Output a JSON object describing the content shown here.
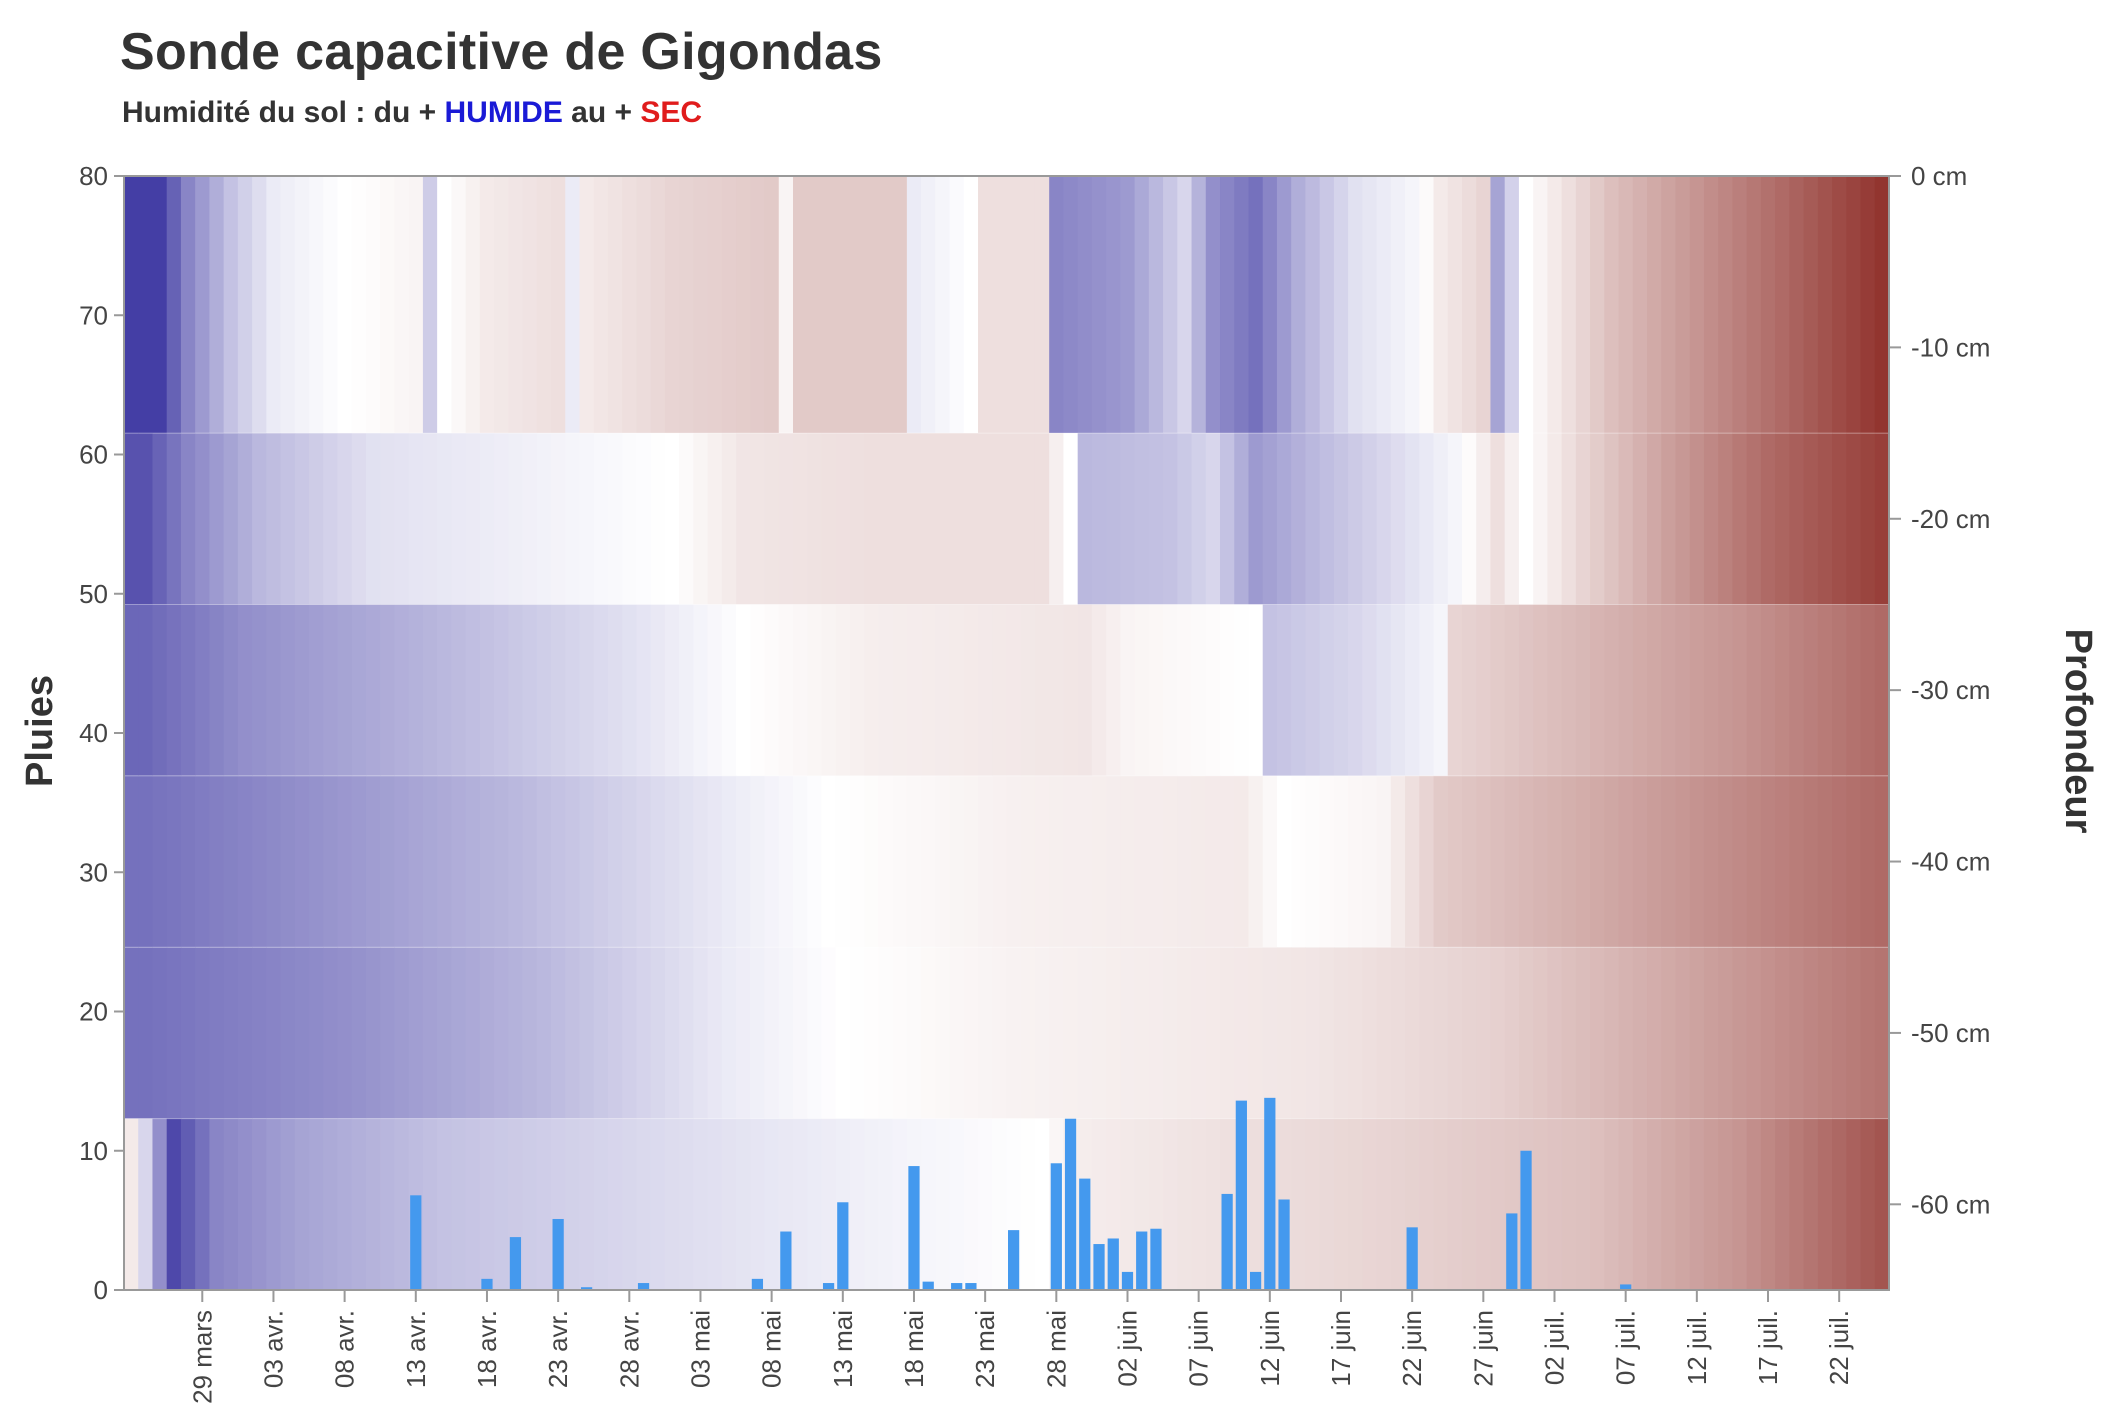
{
  "header": {
    "title": "Sonde capacitive de Gigondas",
    "subtitle_prefix": "Humidité du sol : du + ",
    "subtitle_wet": "HUMIDE",
    "subtitle_mid": " au + ",
    "subtitle_dry": "SEC"
  },
  "colors": {
    "wet": "#3a34a0",
    "neutral": "#ffffff",
    "dry": "#8c2a24",
    "rain": "#4499ee",
    "axis": "#999999"
  },
  "chart_data": {
    "type": "heatmap",
    "title": "Sonde capacitive de Gigondas",
    "ylabel_left": "Pluies",
    "ylabel_right": "Profondeur",
    "ylim_left": [
      0,
      80
    ],
    "yticks_left": [
      "0",
      "10",
      "20",
      "30",
      "40",
      "50",
      "60",
      "70",
      "80"
    ],
    "depth_ticks": [
      "0 cm",
      "-10 cm",
      "-20 cm",
      "-30 cm",
      "-40 cm",
      "-50 cm",
      "-60 cm"
    ],
    "x_start": "2024-03-24",
    "x_end": "2024-07-25",
    "xticks": [
      "29 mars",
      "03 avr.",
      "08 avr.",
      "13 avr.",
      "18 avr.",
      "23 avr.",
      "28 avr.",
      "03 mai",
      "08 mai",
      "13 mai",
      "18 mai",
      "23 mai",
      "28 mai",
      "02 juin",
      "07 juin",
      "12 juin",
      "17 juin",
      "22 juin",
      "27 juin",
      "02 juil.",
      "07 juil.",
      "12 juil.",
      "17 juil.",
      "22 juil."
    ],
    "layer_bounds_cm": [
      0,
      -15,
      -25,
      -35,
      -45,
      -55,
      -65
    ],
    "moisture_scale": "-1 = plus humide (bleu), 0 = neutre (blanc), +1 = plus sec (rouge)",
    "moisture_layers": [
      {
        "depth": "0 to -15 cm",
        "points": [
          [
            "2024-03-26",
            -0.95
          ],
          [
            "2024-03-28",
            -0.6
          ],
          [
            "2024-03-31",
            -0.3
          ],
          [
            "2024-04-03",
            -0.1
          ],
          [
            "2024-04-08",
            0.0
          ],
          [
            "2024-04-13",
            0.05
          ],
          [
            "2024-04-14",
            -0.25
          ],
          [
            "2024-04-15",
            0.0
          ],
          [
            "2024-04-18",
            0.1
          ],
          [
            "2024-04-23",
            0.15
          ],
          [
            "2024-04-24",
            -0.1
          ],
          [
            "2024-04-25",
            0.1
          ],
          [
            "2024-05-01",
            0.2
          ],
          [
            "2024-05-08",
            0.25
          ],
          [
            "2024-05-09",
            0.05
          ],
          [
            "2024-05-10",
            0.25
          ],
          [
            "2024-05-17",
            0.25
          ],
          [
            "2024-05-18",
            -0.1
          ],
          [
            "2024-05-22",
            0.0
          ],
          [
            "2024-05-23",
            0.15
          ],
          [
            "2024-05-27",
            0.15
          ],
          [
            "2024-05-28",
            -0.6
          ],
          [
            "2024-06-02",
            -0.5
          ],
          [
            "2024-06-06",
            -0.2
          ],
          [
            "2024-06-08",
            -0.55
          ],
          [
            "2024-06-11",
            -0.7
          ],
          [
            "2024-06-14",
            -0.4
          ],
          [
            "2024-06-18",
            -0.15
          ],
          [
            "2024-06-22",
            -0.05
          ],
          [
            "2024-06-24",
            0.1
          ],
          [
            "2024-06-27",
            0.2
          ],
          [
            "2024-06-28",
            -0.45
          ],
          [
            "2024-06-30",
            0.0
          ],
          [
            "2024-07-02",
            0.1
          ],
          [
            "2024-07-06",
            0.3
          ],
          [
            "2024-07-12",
            0.5
          ],
          [
            "2024-07-18",
            0.7
          ],
          [
            "2024-07-25",
            0.95
          ]
        ]
      },
      {
        "depth": "-15 to -25 cm",
        "points": [
          [
            "2024-03-25",
            -0.85
          ],
          [
            "2024-03-28",
            -0.6
          ],
          [
            "2024-04-02",
            -0.35
          ],
          [
            "2024-04-10",
            -0.15
          ],
          [
            "2024-04-20",
            -0.08
          ],
          [
            "2024-05-01",
            0.0
          ],
          [
            "2024-05-06",
            0.12
          ],
          [
            "2024-05-15",
            0.15
          ],
          [
            "2024-05-27",
            0.15
          ],
          [
            "2024-05-29",
            0.0
          ],
          [
            "2024-05-30",
            -0.35
          ],
          [
            "2024-06-05",
            -0.3
          ],
          [
            "2024-06-08",
            -0.2
          ],
          [
            "2024-06-11",
            -0.5
          ],
          [
            "2024-06-15",
            -0.35
          ],
          [
            "2024-06-20",
            -0.2
          ],
          [
            "2024-06-25",
            -0.05
          ],
          [
            "2024-06-28",
            0.15
          ],
          [
            "2024-06-30",
            0.0
          ],
          [
            "2024-07-04",
            0.2
          ],
          [
            "2024-07-10",
            0.45
          ],
          [
            "2024-07-17",
            0.7
          ],
          [
            "2024-07-25",
            0.9
          ]
        ]
      },
      {
        "depth": "-25 to -35 cm",
        "points": [
          [
            "2024-03-25",
            -0.75
          ],
          [
            "2024-04-01",
            -0.55
          ],
          [
            "2024-04-15",
            -0.35
          ],
          [
            "2024-04-28",
            -0.15
          ],
          [
            "2024-05-06",
            0.0
          ],
          [
            "2024-05-15",
            0.08
          ],
          [
            "2024-05-30",
            0.12
          ],
          [
            "2024-06-02",
            0.05
          ],
          [
            "2024-06-11",
            0.0
          ],
          [
            "2024-06-12",
            -0.3
          ],
          [
            "2024-06-18",
            -0.2
          ],
          [
            "2024-06-24",
            -0.05
          ],
          [
            "2024-06-25",
            0.2
          ],
          [
            "2024-07-05",
            0.35
          ],
          [
            "2024-07-15",
            0.5
          ],
          [
            "2024-07-25",
            0.7
          ]
        ]
      },
      {
        "depth": "-35 to -45 cm",
        "points": [
          [
            "2024-03-25",
            -0.7
          ],
          [
            "2024-04-05",
            -0.55
          ],
          [
            "2024-04-20",
            -0.35
          ],
          [
            "2024-05-05",
            -0.1
          ],
          [
            "2024-05-12",
            0.0
          ],
          [
            "2024-05-25",
            0.07
          ],
          [
            "2024-06-10",
            0.1
          ],
          [
            "2024-06-13",
            0.0
          ],
          [
            "2024-06-20",
            0.05
          ],
          [
            "2024-06-24",
            0.25
          ],
          [
            "2024-07-05",
            0.4
          ],
          [
            "2024-07-15",
            0.55
          ],
          [
            "2024-07-25",
            0.7
          ]
        ]
      },
      {
        "depth": "-45 to -55 cm",
        "points": [
          [
            "2024-03-25",
            -0.7
          ],
          [
            "2024-04-08",
            -0.55
          ],
          [
            "2024-04-22",
            -0.35
          ],
          [
            "2024-05-05",
            -0.1
          ],
          [
            "2024-05-13",
            0.0
          ],
          [
            "2024-05-25",
            0.06
          ],
          [
            "2024-06-15",
            0.12
          ],
          [
            "2024-06-28",
            0.22
          ],
          [
            "2024-07-10",
            0.4
          ],
          [
            "2024-07-25",
            0.65
          ]
        ]
      },
      {
        "depth": "-55 to -65 cm",
        "points": [
          [
            "2024-03-24",
            0.1
          ],
          [
            "2024-03-25",
            -0.2
          ],
          [
            "2024-03-27",
            -0.9
          ],
          [
            "2024-03-30",
            -0.6
          ],
          [
            "2024-04-05",
            -0.45
          ],
          [
            "2024-04-15",
            -0.3
          ],
          [
            "2024-04-25",
            -0.22
          ],
          [
            "2024-05-08",
            -0.12
          ],
          [
            "2024-05-18",
            -0.05
          ],
          [
            "2024-05-27",
            0.0
          ],
          [
            "2024-05-29",
            0.08
          ],
          [
            "2024-06-10",
            0.15
          ],
          [
            "2024-06-20",
            0.2
          ],
          [
            "2024-07-05",
            0.3
          ],
          [
            "2024-07-15",
            0.5
          ],
          [
            "2024-07-25",
            0.8
          ]
        ]
      }
    ],
    "rain_series": {
      "name": "Pluies",
      "points": [
        [
          "2024-04-13",
          6.8
        ],
        [
          "2024-04-18",
          0.8
        ],
        [
          "2024-04-20",
          3.8
        ],
        [
          "2024-04-23",
          5.1
        ],
        [
          "2024-04-25",
          0.2
        ],
        [
          "2024-04-29",
          0.5
        ],
        [
          "2024-05-07",
          0.8
        ],
        [
          "2024-05-09",
          4.2
        ],
        [
          "2024-05-12",
          0.5
        ],
        [
          "2024-05-13",
          6.3
        ],
        [
          "2024-05-18",
          8.9
        ],
        [
          "2024-05-19",
          0.6
        ],
        [
          "2024-05-21",
          0.5
        ],
        [
          "2024-05-22",
          0.5
        ],
        [
          "2024-05-25",
          4.3
        ],
        [
          "2024-05-28",
          9.1
        ],
        [
          "2024-05-29",
          12.3
        ],
        [
          "2024-05-30",
          8.0
        ],
        [
          "2024-05-31",
          3.3
        ],
        [
          "2024-06-01",
          3.7
        ],
        [
          "2024-06-02",
          1.3
        ],
        [
          "2024-06-03",
          4.2
        ],
        [
          "2024-06-04",
          4.4
        ],
        [
          "2024-06-09",
          6.9
        ],
        [
          "2024-06-10",
          13.6
        ],
        [
          "2024-06-11",
          1.3
        ],
        [
          "2024-06-12",
          13.8
        ],
        [
          "2024-06-13",
          6.5
        ],
        [
          "2024-06-22",
          4.5
        ],
        [
          "2024-06-29",
          5.5
        ],
        [
          "2024-06-30",
          10.0
        ],
        [
          "2024-07-07",
          0.4
        ]
      ]
    }
  }
}
